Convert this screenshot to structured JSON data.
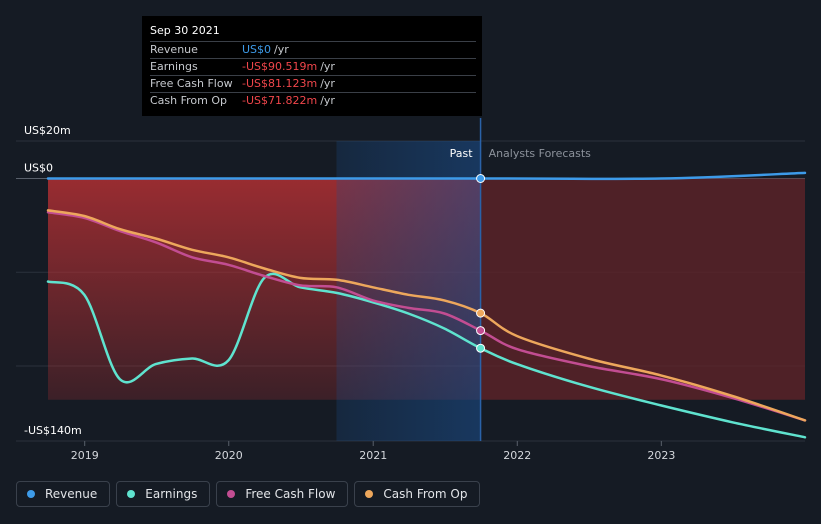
{
  "tooltip": {
    "date": "Sep 30 2021",
    "rows": [
      {
        "label": "Revenue",
        "value": "US$0",
        "unit": "/yr",
        "color": "#3d9be9"
      },
      {
        "label": "Earnings",
        "value": "-US$90.519m",
        "unit": "/yr",
        "color": "#f0464b"
      },
      {
        "label": "Free Cash Flow",
        "value": "-US$81.123m",
        "unit": "/yr",
        "color": "#f0464b"
      },
      {
        "label": "Cash From Op",
        "value": "-US$71.822m",
        "unit": "/yr",
        "color": "#f0464b"
      }
    ]
  },
  "legend": [
    {
      "label": "Revenue",
      "color": "#3d9be9"
    },
    {
      "label": "Earnings",
      "color": "#5fe3cf"
    },
    {
      "label": "Free Cash Flow",
      "color": "#c24d92"
    },
    {
      "label": "Cash From Op",
      "color": "#eda75c"
    }
  ],
  "chart_data": {
    "type": "line",
    "xlim": [
      "2018-09-30",
      "2023-12-31"
    ],
    "ylim": [
      -140,
      20
    ],
    "ytick_labels": [
      {
        "value": 20,
        "label": "US$20m"
      },
      {
        "value": 0,
        "label": "US$0"
      },
      {
        "value": -140,
        "label": "-US$140m"
      }
    ],
    "gridlines": [
      20,
      0,
      -50,
      -100,
      -140
    ],
    "xtick_labels": [
      {
        "date": "2019-01-01",
        "label": "2019"
      },
      {
        "date": "2020-01-01",
        "label": "2020"
      },
      {
        "date": "2021-01-01",
        "label": "2021"
      },
      {
        "date": "2022-01-01",
        "label": "2022"
      },
      {
        "date": "2023-01-01",
        "label": "2023"
      }
    ],
    "past_label": "Past",
    "forecast_label": "Analysts Forecasts",
    "divider_date": "2021-09-30",
    "highlight_start": "2020-09-30",
    "series": [
      {
        "name": "Revenue",
        "color": "#3d9be9",
        "points": [
          [
            "2018-09-30",
            0
          ],
          [
            "2021-09-30",
            0
          ],
          [
            "2023-01-01",
            0
          ],
          [
            "2023-12-31",
            3
          ]
        ]
      },
      {
        "name": "Earnings",
        "color": "#5fe3cf",
        "points": [
          [
            "2018-09-30",
            -55
          ],
          [
            "2018-12-31",
            -62
          ],
          [
            "2019-03-31",
            -107
          ],
          [
            "2019-06-30",
            -99
          ],
          [
            "2019-09-30",
            -96
          ],
          [
            "2019-12-31",
            -97
          ],
          [
            "2020-03-31",
            -53
          ],
          [
            "2020-06-30",
            -58
          ],
          [
            "2020-09-30",
            -61
          ],
          [
            "2020-12-31",
            -66
          ],
          [
            "2021-03-31",
            -72
          ],
          [
            "2021-06-30",
            -80
          ],
          [
            "2021-09-30",
            -90.5
          ],
          [
            "2021-12-31",
            -99
          ],
          [
            "2022-06-30",
            -111
          ],
          [
            "2022-12-31",
            -121
          ],
          [
            "2023-06-30",
            -130
          ],
          [
            "2023-12-31",
            -138
          ]
        ]
      },
      {
        "name": "Free Cash Flow",
        "color": "#c24d92",
        "points": [
          [
            "2018-09-30",
            -18
          ],
          [
            "2018-12-31",
            -21
          ],
          [
            "2019-03-31",
            -28
          ],
          [
            "2019-06-30",
            -34
          ],
          [
            "2019-09-30",
            -42
          ],
          [
            "2019-12-31",
            -46
          ],
          [
            "2020-03-31",
            -52
          ],
          [
            "2020-06-30",
            -57
          ],
          [
            "2020-09-30",
            -58
          ],
          [
            "2020-12-31",
            -65
          ],
          [
            "2021-03-31",
            -69
          ],
          [
            "2021-06-30",
            -72
          ],
          [
            "2021-09-30",
            -81.1
          ],
          [
            "2021-12-31",
            -91
          ],
          [
            "2022-06-30",
            -100
          ],
          [
            "2022-12-31",
            -107
          ],
          [
            "2023-06-30",
            -117
          ],
          [
            "2023-12-31",
            -129
          ]
        ]
      },
      {
        "name": "Cash From Op",
        "color": "#eda75c",
        "points": [
          [
            "2018-09-30",
            -17
          ],
          [
            "2018-12-31",
            -20
          ],
          [
            "2019-03-31",
            -27
          ],
          [
            "2019-06-30",
            -32
          ],
          [
            "2019-09-30",
            -38
          ],
          [
            "2019-12-31",
            -42
          ],
          [
            "2020-03-31",
            -48
          ],
          [
            "2020-06-30",
            -53
          ],
          [
            "2020-09-30",
            -54
          ],
          [
            "2020-12-31",
            -58
          ],
          [
            "2021-03-31",
            -62
          ],
          [
            "2021-06-30",
            -65
          ],
          [
            "2021-09-30",
            -71.8
          ],
          [
            "2021-12-31",
            -84
          ],
          [
            "2022-06-30",
            -96
          ],
          [
            "2022-12-31",
            -105
          ],
          [
            "2023-06-30",
            -116
          ],
          [
            "2023-12-31",
            -129
          ]
        ]
      }
    ]
  }
}
